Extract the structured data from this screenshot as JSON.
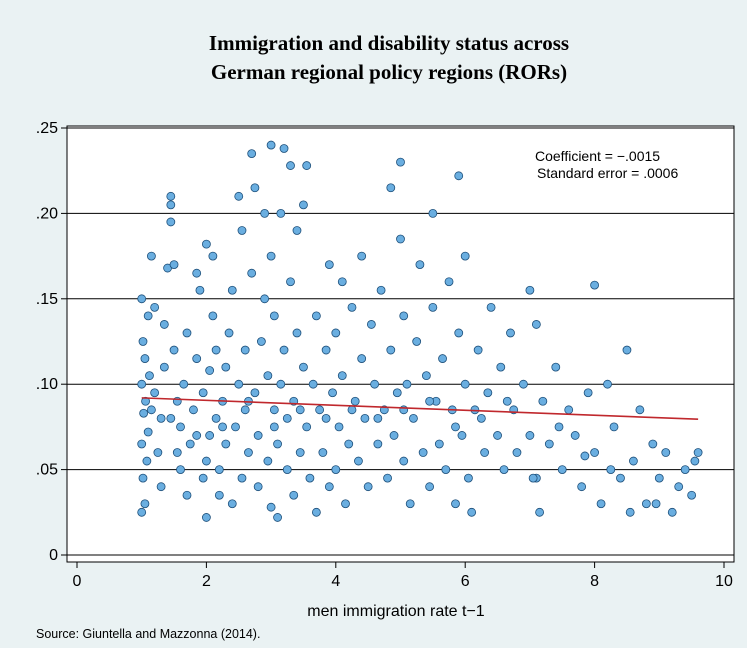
{
  "chart_data": {
    "type": "scatter",
    "title_line1": "Immigration and disability status across",
    "title_line2": "German regional policy regions (RORs)",
    "xlabel": "men immigration rate t−1",
    "ylabel": "",
    "xlim": [
      0,
      10
    ],
    "ylim": [
      0,
      0.25
    ],
    "x_ticks": [
      0,
      2,
      4,
      6,
      8,
      10
    ],
    "x_tick_labels": [
      "0",
      "2",
      "4",
      "6",
      "8",
      "10"
    ],
    "y_ticks": [
      0,
      0.05,
      0.1,
      0.15,
      0.2,
      0.25
    ],
    "y_tick_labels": [
      "0",
      ".05",
      ".10",
      ".15",
      ".20",
      ".25"
    ],
    "grid": "horizontal",
    "annotations": [
      "Coefficient = −.0015",
      "Standard error = .0006"
    ],
    "fit_line": {
      "x": [
        1.0,
        9.6
      ],
      "y": [
        0.092,
        0.0795
      ],
      "color": "#c0282d"
    },
    "point_fill": "#6aaee0",
    "point_stroke": "#1d4f7a",
    "points": [
      [
        1.0,
        0.025
      ],
      [
        1.05,
        0.03
      ],
      [
        1.02,
        0.045
      ],
      [
        1.08,
        0.055
      ],
      [
        1.0,
        0.065
      ],
      [
        1.1,
        0.072
      ],
      [
        1.03,
        0.083
      ],
      [
        1.06,
        0.09
      ],
      [
        1.0,
        0.1
      ],
      [
        1.12,
        0.105
      ],
      [
        1.05,
        0.115
      ],
      [
        1.02,
        0.125
      ],
      [
        1.1,
        0.14
      ],
      [
        1.0,
        0.15
      ],
      [
        1.15,
        0.175
      ],
      [
        1.2,
        0.145
      ],
      [
        1.2,
        0.095
      ],
      [
        1.25,
        0.06
      ],
      [
        1.3,
        0.04
      ],
      [
        1.3,
        0.08
      ],
      [
        1.35,
        0.11
      ],
      [
        1.35,
        0.135
      ],
      [
        1.4,
        0.168
      ],
      [
        1.45,
        0.205
      ],
      [
        1.45,
        0.21
      ],
      [
        1.45,
        0.195
      ],
      [
        1.5,
        0.17
      ],
      [
        1.5,
        0.12
      ],
      [
        1.55,
        0.09
      ],
      [
        1.55,
        0.06
      ],
      [
        1.6,
        0.05
      ],
      [
        1.6,
        0.075
      ],
      [
        1.65,
        0.1
      ],
      [
        1.7,
        0.13
      ],
      [
        1.7,
        0.035
      ],
      [
        1.75,
        0.065
      ],
      [
        1.8,
        0.085
      ],
      [
        1.85,
        0.115
      ],
      [
        1.85,
        0.165
      ],
      [
        1.9,
        0.155
      ],
      [
        1.95,
        0.045
      ],
      [
        1.95,
        0.095
      ],
      [
        2.0,
        0.055
      ],
      [
        2.0,
        0.022
      ],
      [
        2.05,
        0.07
      ],
      [
        2.05,
        0.108
      ],
      [
        2.0,
        0.182
      ],
      [
        2.1,
        0.175
      ],
      [
        2.1,
        0.14
      ],
      [
        2.15,
        0.12
      ],
      [
        2.15,
        0.08
      ],
      [
        2.2,
        0.05
      ],
      [
        2.2,
        0.035
      ],
      [
        2.25,
        0.09
      ],
      [
        2.3,
        0.065
      ],
      [
        2.3,
        0.11
      ],
      [
        2.35,
        0.13
      ],
      [
        2.4,
        0.155
      ],
      [
        2.4,
        0.03
      ],
      [
        2.45,
        0.075
      ],
      [
        2.5,
        0.1
      ],
      [
        2.5,
        0.21
      ],
      [
        2.55,
        0.19
      ],
      [
        2.55,
        0.045
      ],
      [
        2.6,
        0.085
      ],
      [
        2.6,
        0.12
      ],
      [
        2.65,
        0.06
      ],
      [
        2.7,
        0.165
      ],
      [
        2.7,
        0.235
      ],
      [
        2.75,
        0.215
      ],
      [
        2.75,
        0.095
      ],
      [
        2.8,
        0.04
      ],
      [
        2.8,
        0.07
      ],
      [
        2.85,
        0.125
      ],
      [
        2.9,
        0.2
      ],
      [
        2.9,
        0.15
      ],
      [
        2.95,
        0.055
      ],
      [
        2.95,
        0.105
      ],
      [
        3.0,
        0.24
      ],
      [
        3.0,
        0.175
      ],
      [
        3.0,
        0.028
      ],
      [
        3.05,
        0.085
      ],
      [
        3.05,
        0.14
      ],
      [
        3.1,
        0.022
      ],
      [
        3.1,
        0.065
      ],
      [
        3.15,
        0.1
      ],
      [
        3.15,
        0.2
      ],
      [
        3.2,
        0.238
      ],
      [
        3.2,
        0.12
      ],
      [
        3.25,
        0.05
      ],
      [
        3.25,
        0.08
      ],
      [
        3.3,
        0.16
      ],
      [
        3.3,
        0.228
      ],
      [
        3.35,
        0.035
      ],
      [
        3.35,
        0.09
      ],
      [
        3.4,
        0.13
      ],
      [
        3.4,
        0.19
      ],
      [
        3.45,
        0.06
      ],
      [
        3.5,
        0.205
      ],
      [
        3.5,
        0.11
      ],
      [
        3.55,
        0.228
      ],
      [
        3.55,
        0.075
      ],
      [
        3.6,
        0.045
      ],
      [
        3.65,
        0.1
      ],
      [
        3.7,
        0.14
      ],
      [
        3.7,
        0.025
      ],
      [
        3.75,
        0.085
      ],
      [
        3.8,
        0.06
      ],
      [
        3.85,
        0.12
      ],
      [
        3.9,
        0.17
      ],
      [
        3.9,
        0.04
      ],
      [
        3.95,
        0.095
      ],
      [
        4.0,
        0.05
      ],
      [
        4.0,
        0.13
      ],
      [
        4.05,
        0.075
      ],
      [
        4.1,
        0.16
      ],
      [
        4.1,
        0.105
      ],
      [
        4.15,
        0.03
      ],
      [
        4.2,
        0.065
      ],
      [
        4.25,
        0.145
      ],
      [
        4.3,
        0.09
      ],
      [
        4.35,
        0.055
      ],
      [
        4.4,
        0.175
      ],
      [
        4.4,
        0.115
      ],
      [
        4.45,
        0.08
      ],
      [
        4.5,
        0.04
      ],
      [
        4.55,
        0.135
      ],
      [
        4.6,
        0.1
      ],
      [
        4.65,
        0.065
      ],
      [
        4.7,
        0.155
      ],
      [
        4.75,
        0.085
      ],
      [
        4.8,
        0.045
      ],
      [
        4.85,
        0.215
      ],
      [
        4.85,
        0.12
      ],
      [
        4.9,
        0.07
      ],
      [
        4.95,
        0.095
      ],
      [
        5.0,
        0.23
      ],
      [
        5.0,
        0.185
      ],
      [
        5.05,
        0.14
      ],
      [
        5.05,
        0.055
      ],
      [
        5.1,
        0.1
      ],
      [
        5.15,
        0.03
      ],
      [
        5.2,
        0.08
      ],
      [
        5.25,
        0.125
      ],
      [
        5.3,
        0.17
      ],
      [
        5.35,
        0.06
      ],
      [
        5.4,
        0.105
      ],
      [
        5.45,
        0.04
      ],
      [
        5.5,
        0.2
      ],
      [
        5.5,
        0.145
      ],
      [
        5.55,
        0.09
      ],
      [
        5.6,
        0.065
      ],
      [
        5.65,
        0.115
      ],
      [
        5.7,
        0.05
      ],
      [
        5.75,
        0.16
      ],
      [
        5.8,
        0.085
      ],
      [
        5.85,
        0.03
      ],
      [
        5.9,
        0.222
      ],
      [
        5.9,
        0.13
      ],
      [
        5.95,
        0.07
      ],
      [
        6.0,
        0.1
      ],
      [
        6.0,
        0.175
      ],
      [
        6.05,
        0.045
      ],
      [
        6.1,
        0.025
      ],
      [
        6.15,
        0.085
      ],
      [
        6.2,
        0.12
      ],
      [
        6.3,
        0.06
      ],
      [
        6.35,
        0.095
      ],
      [
        6.4,
        0.145
      ],
      [
        6.5,
        0.07
      ],
      [
        6.55,
        0.11
      ],
      [
        6.6,
        0.05
      ],
      [
        6.7,
        0.13
      ],
      [
        6.75,
        0.085
      ],
      [
        6.8,
        0.06
      ],
      [
        6.9,
        0.1
      ],
      [
        7.0,
        0.155
      ],
      [
        7.0,
        0.07
      ],
      [
        7.1,
        0.045
      ],
      [
        7.1,
        0.135
      ],
      [
        7.15,
        0.025
      ],
      [
        7.2,
        0.09
      ],
      [
        7.3,
        0.065
      ],
      [
        7.4,
        0.11
      ],
      [
        7.5,
        0.05
      ],
      [
        7.6,
        0.085
      ],
      [
        7.7,
        0.07
      ],
      [
        7.8,
        0.04
      ],
      [
        7.9,
        0.095
      ],
      [
        8.0,
        0.158
      ],
      [
        8.0,
        0.06
      ],
      [
        8.1,
        0.03
      ],
      [
        8.2,
        0.1
      ],
      [
        8.3,
        0.075
      ],
      [
        8.4,
        0.045
      ],
      [
        8.5,
        0.12
      ],
      [
        8.6,
        0.055
      ],
      [
        8.7,
        0.085
      ],
      [
        8.8,
        0.03
      ],
      [
        8.9,
        0.065
      ],
      [
        9.0,
        0.045
      ],
      [
        9.1,
        0.06
      ],
      [
        9.3,
        0.04
      ],
      [
        9.4,
        0.05
      ],
      [
        9.5,
        0.035
      ],
      [
        9.6,
        0.06
      ],
      [
        9.55,
        0.055
      ],
      [
        9.2,
        0.025
      ],
      [
        8.95,
        0.03
      ],
      [
        8.55,
        0.025
      ],
      [
        8.25,
        0.05
      ],
      [
        7.85,
        0.058
      ],
      [
        7.45,
        0.075
      ],
      [
        7.05,
        0.045
      ],
      [
        6.65,
        0.09
      ],
      [
        6.25,
        0.08
      ],
      [
        5.85,
        0.075
      ],
      [
        5.45,
        0.09
      ],
      [
        5.05,
        0.085
      ],
      [
        4.65,
        0.08
      ],
      [
        4.25,
        0.085
      ],
      [
        3.85,
        0.08
      ],
      [
        3.45,
        0.085
      ],
      [
        3.05,
        0.075
      ],
      [
        2.65,
        0.09
      ],
      [
        2.25,
        0.075
      ],
      [
        1.85,
        0.07
      ],
      [
        1.45,
        0.08
      ],
      [
        1.15,
        0.085
      ]
    ]
  },
  "source_note": "Source: Giuntella and Mazzonna (2014)."
}
